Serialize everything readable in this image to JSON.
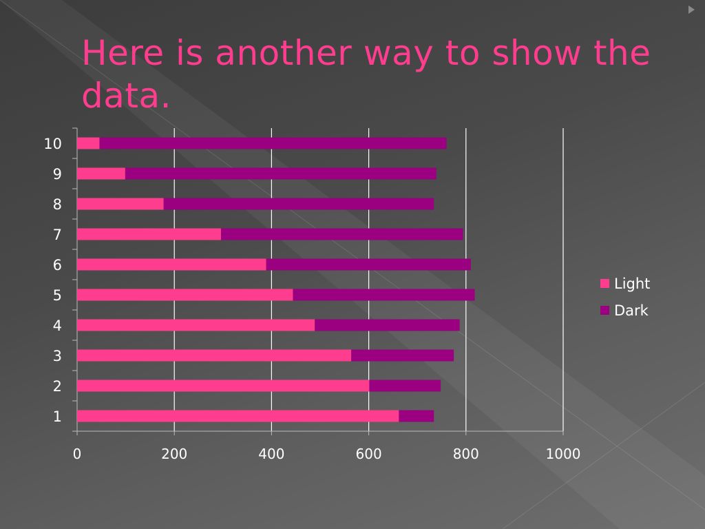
{
  "slide": {
    "title": "Here is another way to show the data."
  },
  "chart_data": {
    "type": "bar",
    "orientation": "horizontal",
    "stacked": true,
    "title": "",
    "xlabel": "",
    "ylabel": "",
    "categories": [
      "1",
      "2",
      "3",
      "4",
      "5",
      "6",
      "7",
      "8",
      "9",
      "10"
    ],
    "series": [
      {
        "name": "Light",
        "color": "#ff3d8e",
        "values": [
          662,
          601,
          564,
          489,
          444,
          389,
          296,
          178,
          99,
          46
        ]
      },
      {
        "name": "Dark",
        "color": "#9a0080",
        "values": [
          72,
          147,
          211,
          298,
          374,
          421,
          498,
          556,
          640,
          714
        ]
      }
    ],
    "xlim": [
      0,
      1000
    ],
    "xticks": [
      "0",
      "200",
      "400",
      "600",
      "800",
      "1000"
    ],
    "grid": true,
    "legend_position": "right"
  }
}
